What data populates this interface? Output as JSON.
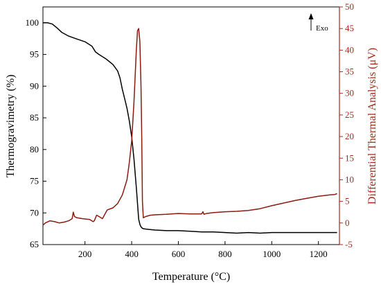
{
  "chart_data": {
    "type": "line",
    "xlabel": "Temperature (°C)",
    "ylabel": "Thermogravimetry (%)",
    "y2label": "Differential Thermal Analysis (μV)",
    "annotation": "Exo",
    "xlim": [
      20,
      1290
    ],
    "ylim": [
      65,
      102.5
    ],
    "y2lim": [
      -5,
      50
    ],
    "xticks": [
      200,
      400,
      600,
      800,
      1000,
      1200
    ],
    "yticks": [
      65,
      70,
      75,
      80,
      85,
      90,
      95,
      100
    ],
    "y2ticks": [
      -5,
      0,
      5,
      10,
      15,
      20,
      25,
      30,
      35,
      40,
      45,
      50
    ],
    "grid": false,
    "colors": {
      "tg": "#000000",
      "dta": "#8b1a10",
      "right_axis": "#a52a1a"
    },
    "series": [
      {
        "axis": "left",
        "x": [
          20,
          40,
          60,
          80,
          100,
          130,
          160,
          200,
          230,
          245,
          260,
          290,
          320,
          340,
          350,
          360,
          370,
          380,
          390,
          400,
          410,
          420,
          425,
          430,
          435,
          440,
          445,
          450,
          470,
          500,
          550,
          600,
          650,
          700,
          750,
          800,
          850,
          900,
          950,
          1000,
          1050,
          1100,
          1150,
          1200,
          1250,
          1280
        ],
        "y": [
          100.0,
          100.0,
          99.8,
          99.2,
          98.5,
          97.9,
          97.5,
          97.0,
          96.3,
          95.4,
          95.0,
          94.3,
          93.4,
          92.4,
          91.3,
          89.5,
          88.0,
          86.5,
          84.5,
          82.0,
          78.5,
          74.0,
          71.5,
          69.0,
          68.2,
          67.8,
          67.6,
          67.5,
          67.4,
          67.3,
          67.2,
          67.2,
          67.1,
          67.0,
          67.0,
          66.9,
          66.8,
          66.9,
          66.8,
          66.9,
          66.9,
          66.9,
          66.9,
          66.9,
          66.9,
          66.9
        ]
      },
      {
        "axis": "right",
        "x": [
          20,
          30,
          50,
          70,
          90,
          110,
          130,
          145,
          150,
          155,
          165,
          190,
          220,
          235,
          240,
          250,
          260,
          275,
          280,
          285,
          295,
          320,
          340,
          360,
          380,
          390,
          400,
          410,
          415,
          420,
          425,
          430,
          435,
          440,
          443,
          446,
          450,
          460,
          480,
          500,
          550,
          600,
          650,
          700,
          705,
          710,
          720,
          750,
          800,
          850,
          900,
          950,
          1000,
          1050,
          1100,
          1150,
          1200,
          1250,
          1270,
          1280
        ],
        "y": [
          -0.5,
          0.0,
          0.5,
          0.3,
          0.0,
          0.2,
          0.5,
          1.0,
          2.5,
          1.5,
          1.2,
          1.0,
          0.8,
          0.3,
          0.5,
          1.8,
          1.5,
          1.0,
          1.5,
          2.0,
          3.0,
          3.5,
          4.5,
          6.5,
          10.0,
          14.0,
          19.0,
          28.0,
          34.0,
          40.0,
          44.5,
          45.0,
          42.0,
          32.0,
          20.0,
          5.0,
          1.2,
          1.5,
          1.8,
          1.9,
          2.0,
          2.2,
          2.1,
          2.1,
          2.6,
          2.0,
          2.2,
          2.4,
          2.6,
          2.7,
          2.9,
          3.3,
          4.0,
          4.6,
          5.2,
          5.7,
          6.2,
          6.5,
          6.6,
          6.8
        ]
      }
    ]
  }
}
